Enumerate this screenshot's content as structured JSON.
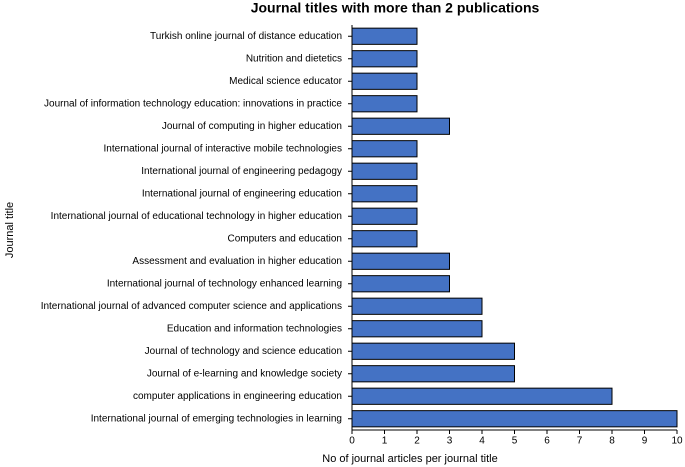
{
  "chart_data": {
    "type": "hbar",
    "title": "Journal titles with more than 2 publications",
    "x_label": "No of  journal articles per journal title",
    "y_label": "Journal title",
    "categories": [
      "Turkish online journal of distance education",
      "Nutrition and dietetics",
      "Medical science educator",
      "Journal of information technology education: innovations in practice",
      "Journal of computing in higher education",
      "International journal of interactive mobile technologies",
      "International journal of engineering pedagogy",
      "International journal of engineering education",
      "International journal of educational technology in higher education",
      "Computers and education",
      "Assessment and evaluation in higher education",
      "International journal of technology enhanced learning",
      "International journal of advanced computer science and applications",
      "Education and information technologies",
      "Journal of technology and science education",
      "Journal of e-learning and knowledge society",
      "computer applications in engineering education",
      "International journal of emerging technologies in learning"
    ],
    "values": [
      2,
      2,
      2,
      2,
      3,
      2,
      2,
      2,
      2,
      2,
      3,
      3,
      4,
      4,
      5,
      5,
      8,
      10
    ],
    "color": "#4472c4",
    "xlim": [
      0,
      10
    ],
    "xticks": [
      0,
      1,
      2,
      3,
      4,
      5,
      6,
      7,
      8,
      9,
      10
    ],
    "grid": false
  }
}
